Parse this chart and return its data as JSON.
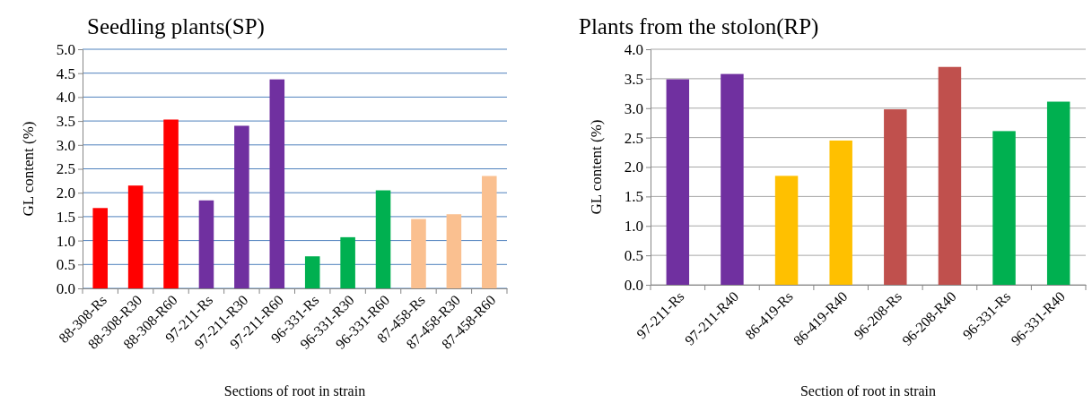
{
  "chart_data": [
    {
      "type": "bar",
      "title": "Seedling plants(SP)",
      "xlabel": "Sections of root in strain",
      "ylabel": "GL content (%)",
      "categories": [
        "88-308-Rs",
        "88-308-R30",
        "88-308-R60",
        "97-211-Rs",
        "97-211-R30",
        "97-211-R60",
        "96-331-Rs",
        "96-331-R30",
        "96-331-R60",
        "87-458-Rs",
        "87-458-R30",
        "87-458-R60"
      ],
      "values": [
        1.68,
        2.15,
        3.53,
        1.84,
        3.4,
        4.37,
        0.67,
        1.07,
        2.05,
        1.45,
        1.55,
        2.35
      ],
      "colors": [
        "#ff0000",
        "#ff0000",
        "#ff0000",
        "#7030a0",
        "#7030a0",
        "#7030a0",
        "#00b050",
        "#00b050",
        "#00b050",
        "#fac090",
        "#fac090",
        "#fac090"
      ],
      "ylim": [
        0,
        5
      ],
      "yticks": [
        {
          "value": 0,
          "label": "0.0"
        },
        {
          "value": 0.5,
          "label": "0.5"
        },
        {
          "value": 1,
          "label": "1.0"
        },
        {
          "value": 1.5,
          "label": "1.5"
        },
        {
          "value": 2,
          "label": "2.0"
        },
        {
          "value": 2.5,
          "label": "2.5"
        },
        {
          "value": 3,
          "label": "3.0"
        },
        {
          "value": 3.5,
          "label": "3.5"
        },
        {
          "value": 4,
          "label": "4.0"
        },
        {
          "value": 4.5,
          "label": "4.5"
        },
        {
          "value": 5,
          "label": "5.0"
        }
      ],
      "grid": "y"
    },
    {
      "type": "bar",
      "title": "Plants from the stolon(RP)",
      "xlabel": "Section of root in strain",
      "ylabel": "GL content (%)",
      "categories": [
        "97-211-Rs",
        "97-211-R40",
        "86-419-Rs",
        "86-419-R40",
        "96-208-Rs",
        "96-208-R40",
        "96-331-Rs",
        "96-331-R40"
      ],
      "values": [
        3.49,
        3.58,
        1.85,
        2.45,
        2.98,
        3.7,
        2.61,
        3.11
      ],
      "colors": [
        "#7030a0",
        "#7030a0",
        "#ffc000",
        "#ffc000",
        "#c0504d",
        "#c0504d",
        "#00b050",
        "#00b050"
      ],
      "ylim": [
        0,
        4
      ],
      "yticks": [
        {
          "value": 0,
          "label": "0.0"
        },
        {
          "value": 0.5,
          "label": "0.5"
        },
        {
          "value": 1,
          "label": "1.0"
        },
        {
          "value": 1.5,
          "label": "1.5"
        },
        {
          "value": 2,
          "label": "2.0"
        },
        {
          "value": 2.5,
          "label": "2.5"
        },
        {
          "value": 3,
          "label": "3.0"
        },
        {
          "value": 3.5,
          "label": "3.5"
        },
        {
          "value": 4,
          "label": "4.0"
        }
      ],
      "grid": "y"
    }
  ]
}
